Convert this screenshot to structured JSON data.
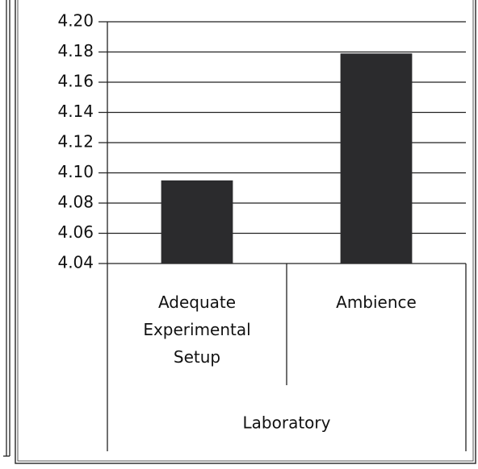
{
  "chart_data": {
    "type": "bar",
    "categories": [
      "Adequate Experimental Setup",
      "Ambience"
    ],
    "group": "Laboratory",
    "values": [
      4.095,
      4.179
    ],
    "color": "#2b2b2d",
    "ylim": [
      4.04,
      4.2
    ],
    "yticks": [
      {
        "value": 4.04,
        "label": "4.04"
      },
      {
        "value": 4.06,
        "label": "4.06"
      },
      {
        "value": 4.08,
        "label": "4.08"
      },
      {
        "value": 4.1,
        "label": "4.10"
      },
      {
        "value": 4.12,
        "label": "4.12"
      },
      {
        "value": 4.14,
        "label": "4.14"
      },
      {
        "value": 4.16,
        "label": "4.16"
      },
      {
        "value": 4.18,
        "label": "4.18"
      },
      {
        "value": 4.2,
        "label": "4.20"
      }
    ],
    "grid": true
  }
}
